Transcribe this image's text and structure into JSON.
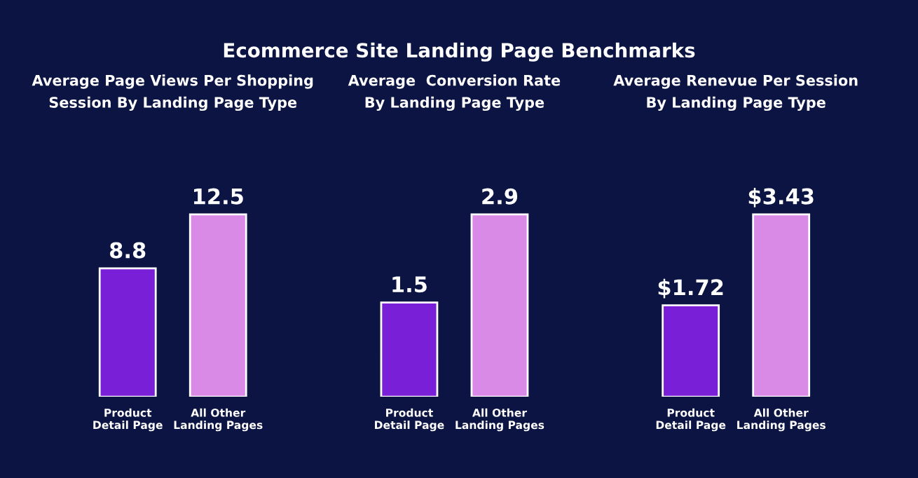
{
  "chart_data": [
    {
      "type": "bar",
      "title": "Average Page Views Per Shopping\nSession By Landing Page Type",
      "annotations": [
        "Ecommerce Site Landing Page Benchmarks"
      ],
      "categories": [
        "Product\nDetail Page",
        "All Other\nLanding Pages"
      ],
      "values": [
        8.8,
        12.5
      ],
      "colors": [
        "#7a1fd8",
        "#d98ae6"
      ],
      "data_labels": true
    },
    {
      "type": "bar",
      "title": "Average  Conversion Rate\nBy Landing Page Type",
      "categories": [
        "Product\nDetail Page",
        "All Other\nLanding Pages"
      ],
      "values": [
        1.5,
        2.9
      ],
      "colors": [
        "#7a1fd8",
        "#d98ae6"
      ],
      "data_labels": true
    },
    {
      "type": "bar",
      "title": "Average Renevue Per Session\nBy Landing Page Type",
      "categories": [
        "Product\nDetail Page",
        "All Other\nLanding Pages"
      ],
      "values": [
        1.72,
        3.43
      ],
      "colors": [
        "#7a1fd8",
        "#d98ae6"
      ],
      "value_labels": [
        "$1.72",
        "$3.43"
      ]
    }
  ]
}
